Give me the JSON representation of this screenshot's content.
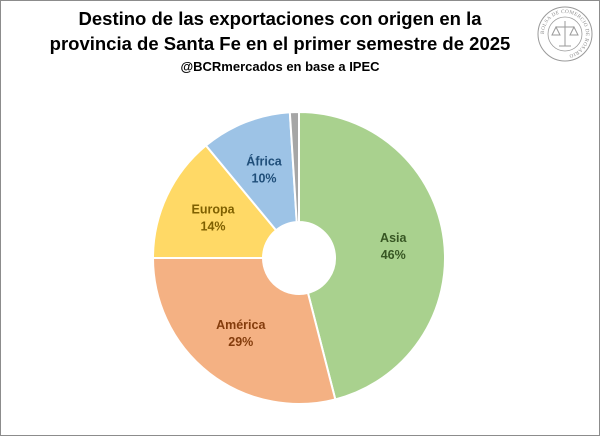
{
  "title_line1": "Destino de las exportaciones con origen en la",
  "title_line2": "provincia de Santa Fe en el primer semestre de 2025",
  "subtitle": "@BCRmercados en base a IPEC",
  "logo_text": "BOLSA DE COMERCIO DE ROSARIO",
  "chart_data": {
    "type": "pie",
    "variant": "doughnut",
    "start_angle_deg": 0,
    "direction": "clockwise",
    "slices": [
      {
        "label": "Asia",
        "value": 46,
        "value_label": "46%",
        "color": "#a9d18e",
        "label_color": "#375623"
      },
      {
        "label": "América",
        "value": 29,
        "value_label": "29%",
        "color": "#f4b183",
        "label_color": "#843c0c"
      },
      {
        "label": "Europa",
        "value": 14,
        "value_label": "14%",
        "color": "#ffd966",
        "label_color": "#7f6000"
      },
      {
        "label": "África",
        "value": 10,
        "value_label": "10%",
        "color": "#9dc3e6",
        "label_color": "#1f4e79"
      },
      {
        "label": "",
        "value": 1,
        "value_label": "",
        "color": "#a6a6a6",
        "label_color": "#404040"
      }
    ]
  }
}
